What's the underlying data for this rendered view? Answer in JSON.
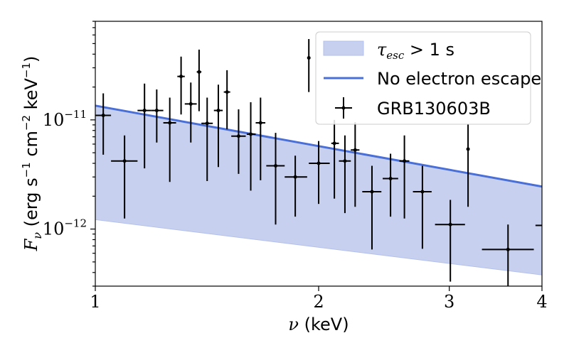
{
  "chart_data": {
    "type": "scatter",
    "x_scale": "log",
    "y_scale": "log",
    "xlim": [
      1,
      4
    ],
    "ylim": [
      3e-13,
      8e-11
    ],
    "x_ticks": [
      1,
      2,
      3,
      4
    ],
    "x_tick_labels": [
      "1",
      "2",
      "3",
      "4"
    ],
    "y_ticks": [
      1e-12,
      1e-11
    ],
    "y_tick_labels": [
      {
        "base": "10",
        "exp": "−12"
      },
      {
        "base": "10",
        "exp": "−11"
      }
    ],
    "xlabel": {
      "symbol": "ν",
      "unit": " (keV)"
    },
    "ylabel": {
      "symbol": "F",
      "sub": "ν",
      "unit": " (erg s",
      "u1": "−1",
      "u2": " cm",
      "u3": "−2",
      "u4": " keV",
      "u5": "−1",
      "u6": ")"
    },
    "colors": {
      "model_line": "#4a6fd6",
      "band_fill": "#c7d0ef",
      "band_edge": "#b3c0ec",
      "data": "#000000"
    },
    "series": [
      {
        "name": "τ_esc > 1 s",
        "kind": "band",
        "x": [
          1,
          4
        ],
        "y_lower": [
          1.22e-12,
          3.8e-13
        ],
        "y_upper": [
          1.35e-11,
          2.45e-12
        ]
      },
      {
        "name": "No electron escape",
        "kind": "line",
        "x": [
          1,
          4
        ],
        "y": [
          1.35e-11,
          2.45e-12
        ]
      },
      {
        "name": "GRB130603B",
        "kind": "errorbar",
        "points": [
          {
            "x": 1.025,
            "xlo": 1.0,
            "xhi": 1.05,
            "y": 1.1e-11,
            "ylo": 4.8e-12,
            "yhi": 1.75e-11
          },
          {
            "x": 1.095,
            "xlo": 1.05,
            "xhi": 1.14,
            "y": 4.2e-12,
            "ylo": 1.25e-12,
            "yhi": 7.2e-12
          },
          {
            "x": 1.165,
            "xlo": 1.14,
            "xhi": 1.19,
            "y": 1.22e-11,
            "ylo": 3.6e-12,
            "yhi": 2.15e-11
          },
          {
            "x": 1.21,
            "xlo": 1.19,
            "xhi": 1.235,
            "y": 1.22e-11,
            "ylo": 6.2e-12,
            "yhi": 1.9e-11
          },
          {
            "x": 1.26,
            "xlo": 1.235,
            "xhi": 1.285,
            "y": 9.4e-12,
            "ylo": 2.7e-12,
            "yhi": 1.6e-11
          },
          {
            "x": 1.305,
            "xlo": 1.29,
            "xhi": 1.32,
            "y": 2.5e-11,
            "ylo": 1.12e-11,
            "yhi": 3.8e-11
          },
          {
            "x": 1.345,
            "xlo": 1.32,
            "xhi": 1.37,
            "y": 1.4e-11,
            "ylo": 6.2e-12,
            "yhi": 2.2e-11
          },
          {
            "x": 1.38,
            "xlo": 1.37,
            "xhi": 1.39,
            "y": 2.75e-11,
            "ylo": 1.2e-11,
            "yhi": 4.4e-11
          },
          {
            "x": 1.415,
            "xlo": 1.39,
            "xhi": 1.44,
            "y": 9.3e-12,
            "ylo": 2.75e-12,
            "yhi": 1.6e-11
          },
          {
            "x": 1.465,
            "xlo": 1.445,
            "xhi": 1.485,
            "y": 1.22e-11,
            "ylo": 3.7e-12,
            "yhi": 2.1e-11
          },
          {
            "x": 1.505,
            "xlo": 1.49,
            "xhi": 1.52,
            "y": 1.8e-11,
            "ylo": 8.2e-12,
            "yhi": 2.85e-11
          },
          {
            "x": 1.56,
            "xlo": 1.525,
            "xhi": 1.595,
            "y": 7.1e-12,
            "ylo": 3.2e-12,
            "yhi": 1.25e-11
          },
          {
            "x": 1.62,
            "xlo": 1.6,
            "xhi": 1.645,
            "y": 7.4e-12,
            "ylo": 2.25e-12,
            "yhi": 1.45e-11
          },
          {
            "x": 1.67,
            "xlo": 1.645,
            "xhi": 1.695,
            "y": 9.4e-12,
            "ylo": 2.8e-12,
            "yhi": 1.6e-11
          },
          {
            "x": 1.75,
            "xlo": 1.7,
            "xhi": 1.8,
            "y": 3.8e-12,
            "ylo": 1.1e-12,
            "yhi": 7.6e-12
          },
          {
            "x": 1.86,
            "xlo": 1.8,
            "xhi": 1.93,
            "y": 3e-12,
            "ylo": 1.3e-12,
            "yhi": 4.7e-12
          },
          {
            "x": 1.94,
            "xlo": 1.94,
            "xhi": 1.94,
            "y": 3.7e-11,
            "ylo": 1.8e-11,
            "yhi": 5.5e-11
          },
          {
            "x": 2.0,
            "xlo": 1.94,
            "xhi": 2.07,
            "y": 4e-12,
            "ylo": 1.7e-12,
            "yhi": 6.4e-12
          },
          {
            "x": 2.1,
            "xlo": 2.08,
            "xhi": 2.13,
            "y": 6.1e-12,
            "ylo": 1.9e-12,
            "yhi": 1e-11
          },
          {
            "x": 2.17,
            "xlo": 2.13,
            "xhi": 2.21,
            "y": 4.2e-12,
            "ylo": 1.4e-12,
            "yhi": 7.2e-12
          },
          {
            "x": 2.24,
            "xlo": 2.21,
            "xhi": 2.27,
            "y": 5.3e-12,
            "ylo": 1.6e-12,
            "yhi": 9.5e-12
          },
          {
            "x": 2.36,
            "xlo": 2.29,
            "xhi": 2.43,
            "y": 2.2e-12,
            "ylo": 6.5e-13,
            "yhi": 3.8e-12
          },
          {
            "x": 2.5,
            "xlo": 2.44,
            "xhi": 2.56,
            "y": 2.9e-12,
            "ylo": 1.3e-12,
            "yhi": 4.9e-12
          },
          {
            "x": 2.61,
            "xlo": 2.57,
            "xhi": 2.65,
            "y": 4.2e-12,
            "ylo": 1.25e-12,
            "yhi": 7.2e-12
          },
          {
            "x": 2.76,
            "xlo": 2.68,
            "xhi": 2.84,
            "y": 2.2e-12,
            "ylo": 6.6e-13,
            "yhi": 3.8e-12
          },
          {
            "x": 3.01,
            "xlo": 2.87,
            "xhi": 3.15,
            "y": 1.1e-12,
            "ylo": 3.3e-13,
            "yhi": 1.85e-12
          },
          {
            "x": 3.18,
            "xlo": 3.18,
            "xhi": 3.18,
            "y": 5.4e-12,
            "ylo": 1.6e-12,
            "yhi": 9.2e-12
          },
          {
            "x": 3.6,
            "xlo": 3.32,
            "xhi": 3.9,
            "y": 6.5e-13,
            "ylo": 3e-13,
            "yhi": 1.1e-12
          },
          {
            "x": 4.0,
            "xlo": 3.92,
            "xhi": 4.0,
            "y": 1.08e-12,
            "ylo": 1.08e-12,
            "yhi": 1.08e-12
          }
        ]
      }
    ],
    "legend": {
      "position": "top-right",
      "entries": [
        {
          "kind": "band",
          "math": "τ",
          "sub": "esc",
          "rest": " > 1 s"
        },
        {
          "kind": "line",
          "label": "No electron escape"
        },
        {
          "kind": "errorbar",
          "label": "GRB130603B"
        }
      ]
    }
  }
}
